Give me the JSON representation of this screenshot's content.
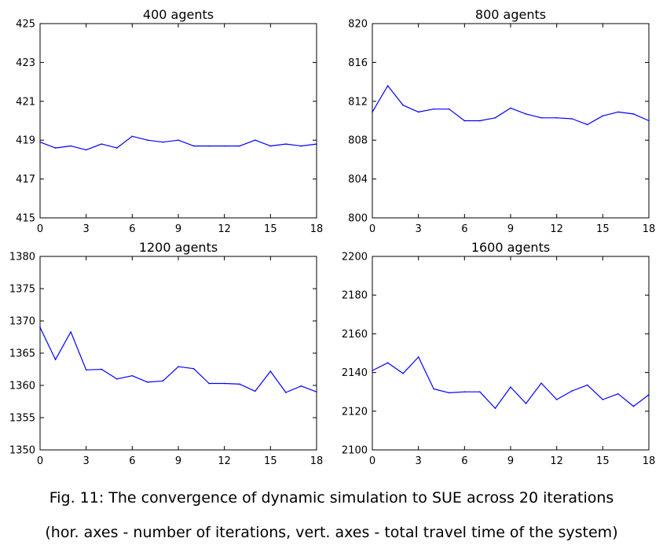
{
  "chart_data": [
    {
      "type": "line",
      "title": "400 agents",
      "xlim": [
        0,
        18
      ],
      "ylim": [
        415,
        425
      ],
      "xticks": [
        0,
        3,
        6,
        9,
        12,
        15,
        18
      ],
      "yticks": [
        415,
        417,
        419,
        421,
        423,
        425
      ],
      "grid": false,
      "x": [
        0,
        1,
        2,
        3,
        4,
        5,
        6,
        7,
        8,
        9,
        10,
        11,
        12,
        13,
        14,
        15,
        16,
        17,
        18
      ],
      "series": [
        {
          "values": [
            418.9,
            418.6,
            418.7,
            418.5,
            418.8,
            418.6,
            419.2,
            419.0,
            418.9,
            419.0,
            418.7,
            418.7,
            418.7,
            418.7,
            419.0,
            418.7,
            418.8,
            418.7,
            418.8
          ]
        }
      ]
    },
    {
      "type": "line",
      "title": "800 agents",
      "xlim": [
        0,
        18
      ],
      "ylim": [
        800,
        820
      ],
      "xticks": [
        0,
        3,
        6,
        9,
        12,
        15,
        18
      ],
      "yticks": [
        800,
        804,
        808,
        812,
        816,
        820
      ],
      "grid": false,
      "x": [
        0,
        1,
        2,
        3,
        4,
        5,
        6,
        7,
        8,
        9,
        10,
        11,
        12,
        13,
        14,
        15,
        16,
        17,
        18
      ],
      "series": [
        {
          "values": [
            810.9,
            813.6,
            811.6,
            810.9,
            811.2,
            811.2,
            810.0,
            810.0,
            810.3,
            811.3,
            810.7,
            810.3,
            810.3,
            810.2,
            809.6,
            810.5,
            810.9,
            810.7,
            810.0
          ]
        }
      ]
    },
    {
      "type": "line",
      "title": "1200 agents",
      "xlim": [
        0,
        18
      ],
      "ylim": [
        1350,
        1380
      ],
      "xticks": [
        0,
        3,
        6,
        9,
        12,
        15,
        18
      ],
      "yticks": [
        1350,
        1355,
        1360,
        1365,
        1370,
        1375,
        1380
      ],
      "grid": false,
      "x": [
        0,
        1,
        2,
        3,
        4,
        5,
        6,
        7,
        8,
        9,
        10,
        11,
        12,
        13,
        14,
        15,
        16,
        17,
        18
      ],
      "series": [
        {
          "values": [
            1369.0,
            1364.0,
            1368.3,
            1362.4,
            1362.5,
            1361.0,
            1361.5,
            1360.5,
            1360.7,
            1362.9,
            1362.6,
            1360.3,
            1360.3,
            1360.2,
            1359.1,
            1362.2,
            1358.9,
            1359.9,
            1359.0
          ]
        }
      ]
    },
    {
      "type": "line",
      "title": "1600 agents",
      "xlim": [
        0,
        18
      ],
      "ylim": [
        2100,
        2200
      ],
      "xticks": [
        0,
        3,
        6,
        9,
        12,
        15,
        18
      ],
      "yticks": [
        2100,
        2120,
        2140,
        2160,
        2180,
        2200
      ],
      "grid": false,
      "x": [
        0,
        1,
        2,
        3,
        4,
        5,
        6,
        7,
        8,
        9,
        10,
        11,
        12,
        13,
        14,
        15,
        16,
        17,
        18
      ],
      "series": [
        {
          "values": [
            2141,
            2145,
            2139.5,
            2148,
            2131.5,
            2129.5,
            2130,
            2130,
            2121.5,
            2132.5,
            2124,
            2134.5,
            2126,
            2130.5,
            2133.5,
            2126,
            2129,
            2122.5,
            2128.5
          ]
        }
      ]
    }
  ],
  "captions": {
    "line1": "Fig. 11: The convergence of dynamic simulation to SUE across 20 iterations",
    "line2": "(hor. axes - number of iterations, vert. axes - total travel time of the system)"
  },
  "colors": {
    "series": "#0000ff",
    "axes": "#000000"
  }
}
